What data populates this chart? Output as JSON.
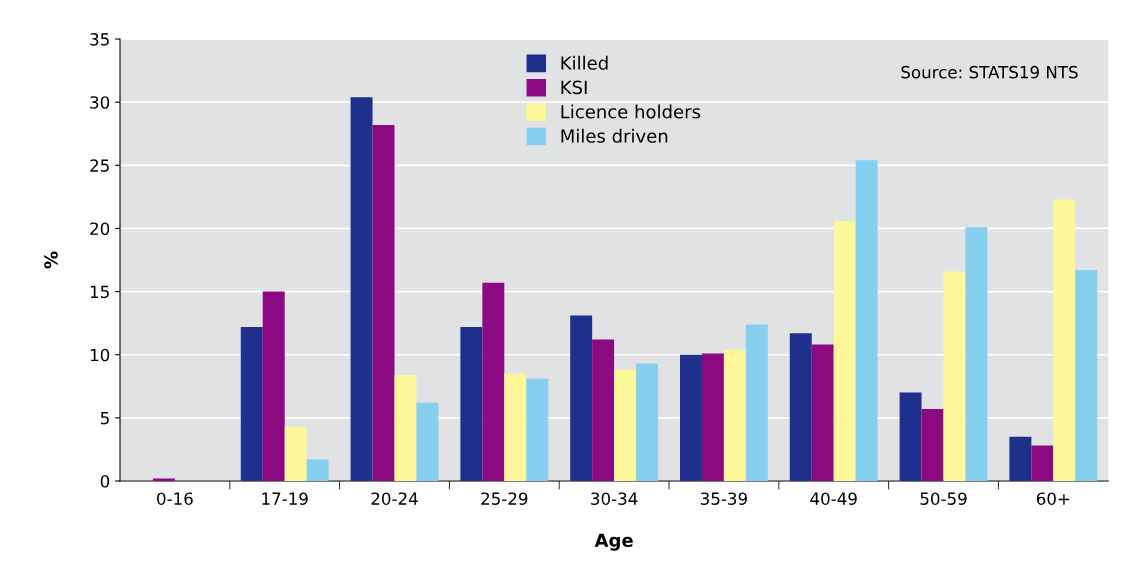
{
  "chart_data": {
    "type": "bar",
    "xlabel": "Age",
    "ylabel": "%",
    "categories": [
      "0-16",
      "17-19",
      "20-24",
      "25-29",
      "30-34",
      "35-39",
      "40-49",
      "50-59",
      "60+"
    ],
    "series": [
      {
        "name": "Killed",
        "color": "#1f2f8c",
        "values": [
          0,
          12.2,
          30.4,
          12.2,
          13.1,
          10.0,
          11.7,
          7.0,
          3.5
        ]
      },
      {
        "name": "KSI",
        "color": "#8b0a82",
        "values": [
          0.2,
          15.0,
          28.2,
          15.7,
          11.2,
          10.1,
          10.8,
          5.7,
          2.8
        ]
      },
      {
        "name": "Licence holders",
        "color": "#fdf79a",
        "values": [
          0,
          4.3,
          8.4,
          8.5,
          8.8,
          10.4,
          20.6,
          16.6,
          22.3
        ]
      },
      {
        "name": "Miles driven",
        "color": "#87cfef",
        "values": [
          0,
          1.7,
          6.2,
          8.1,
          9.3,
          12.4,
          25.4,
          20.1,
          16.7
        ]
      }
    ],
    "ylim": [
      0,
      35
    ],
    "yticks": [
      0,
      5,
      10,
      15,
      20,
      25,
      30,
      35
    ],
    "grid": "y",
    "legend": "top",
    "annotations": [
      "Source: STATS19 NTS"
    ]
  }
}
